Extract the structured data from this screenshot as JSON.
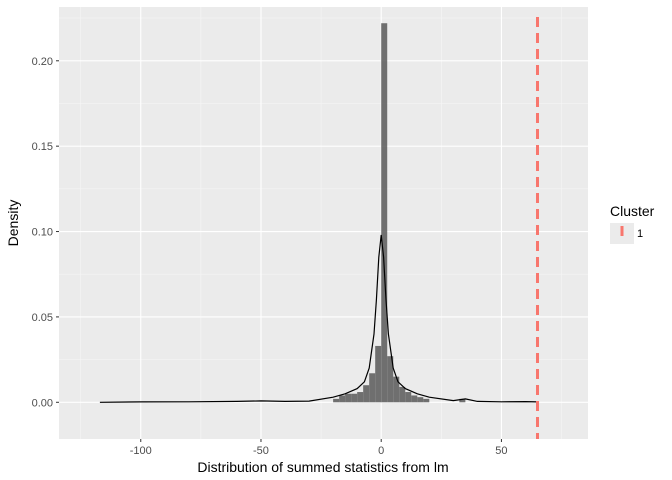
{
  "chart_data": {
    "type": "histogram",
    "xlabel": "Distribution of summed statistics from lm",
    "ylabel": "Density",
    "xlim": [
      -134,
      86
    ],
    "ylim": [
      -0.0215,
      0.2315
    ],
    "x_ticks": [
      -100,
      -50,
      0,
      50
    ],
    "x_tick_labels": [
      "-100",
      "-50",
      "0",
      "50"
    ],
    "y_ticks": [
      0.0,
      0.05,
      0.1,
      0.15,
      0.2
    ],
    "y_tick_labels": [
      "0.00",
      "0.05",
      "0.10",
      "0.15",
      "0.20"
    ],
    "grid": true,
    "histogram": {
      "bin_width": 2.5,
      "color": "#595959",
      "bins": [
        {
          "x0": -20,
          "density": 0.002
        },
        {
          "x0": -17.5,
          "density": 0.004
        },
        {
          "x0": -15,
          "density": 0.005
        },
        {
          "x0": -12.5,
          "density": 0.005
        },
        {
          "x0": -10,
          "density": 0.006
        },
        {
          "x0": -7.5,
          "density": 0.01
        },
        {
          "x0": -5,
          "density": 0.017
        },
        {
          "x0": -2.5,
          "density": 0.033
        },
        {
          "x0": 0,
          "density": 0.222
        },
        {
          "x0": 2.5,
          "density": 0.027
        },
        {
          "x0": 5,
          "density": 0.015
        },
        {
          "x0": 7.5,
          "density": 0.009
        },
        {
          "x0": 10,
          "density": 0.006
        },
        {
          "x0": 12.5,
          "density": 0.004
        },
        {
          "x0": 15,
          "density": 0.003
        },
        {
          "x0": 17.5,
          "density": 0.002
        },
        {
          "x0": 32.5,
          "density": 0.002
        }
      ]
    },
    "density_curve": {
      "color": "#000000",
      "points": [
        [
          -117,
          0.0
        ],
        [
          -100,
          0.0002
        ],
        [
          -80,
          0.0003
        ],
        [
          -60,
          0.0005
        ],
        [
          -50,
          0.0008
        ],
        [
          -40,
          0.0005
        ],
        [
          -30,
          0.0007
        ],
        [
          -20,
          0.003
        ],
        [
          -15,
          0.005
        ],
        [
          -10,
          0.008
        ],
        [
          -7,
          0.012
        ],
        [
          -5,
          0.02
        ],
        [
          -3,
          0.04
        ],
        [
          -2,
          0.06
        ],
        [
          -1,
          0.085
        ],
        [
          0,
          0.098
        ],
        [
          1,
          0.085
        ],
        [
          2,
          0.06
        ],
        [
          3,
          0.04
        ],
        [
          5,
          0.02
        ],
        [
          7,
          0.012
        ],
        [
          10,
          0.008
        ],
        [
          15,
          0.005
        ],
        [
          20,
          0.003
        ],
        [
          30,
          0.001
        ],
        [
          35,
          0.002
        ],
        [
          40,
          0.0005
        ],
        [
          50,
          0.0003
        ],
        [
          60,
          0.0004
        ],
        [
          65,
          0.0002
        ]
      ]
    },
    "vline": {
      "x": 65,
      "color": "#f8766d",
      "linetype": "dashed"
    },
    "legend": {
      "title": "Cluster",
      "items": [
        {
          "label": "1",
          "color": "#f8766d"
        }
      ],
      "placement": "right"
    }
  }
}
